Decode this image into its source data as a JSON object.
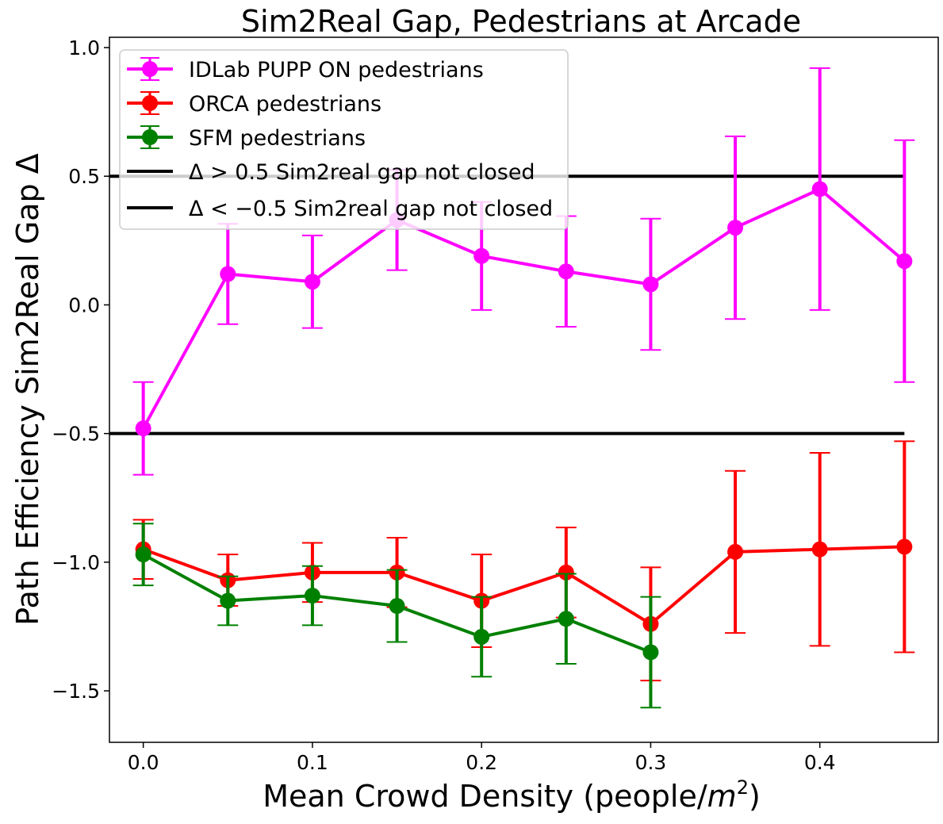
{
  "chart_data": {
    "type": "line",
    "title": "Sim2Real Gap, Pedestrians at Arcade",
    "xlabel": "Mean Crowd Density (people/",
    "xlabel_unit": "m",
    "xlabel_exp": "2",
    "xlabel_close": ")",
    "ylabel": "Path Efficiency Sim2Real Gap Δ",
    "xlim": [
      -0.02,
      0.47
    ],
    "ylim": [
      -1.7,
      1.04
    ],
    "xticks": [
      {
        "value": 0.0,
        "label": "0.0"
      },
      {
        "value": 0.1,
        "label": "0.1"
      },
      {
        "value": 0.2,
        "label": "0.2"
      },
      {
        "value": 0.3,
        "label": "0.3"
      },
      {
        "value": 0.4,
        "label": "0.4"
      }
    ],
    "yticks": [
      {
        "value": 1.0,
        "label": "1.0"
      },
      {
        "value": 0.5,
        "label": "0.5"
      },
      {
        "value": 0.0,
        "label": "0.0"
      },
      {
        "value": -0.5,
        "label": "−0.5"
      },
      {
        "value": -1.0,
        "label": "−1.0"
      },
      {
        "value": -1.5,
        "label": "−1.5"
      }
    ],
    "grid": false,
    "legend_position": "top-left",
    "series": [
      {
        "name": "IDLab PUPP ON pedestrians",
        "color": "#ff00ff",
        "x": [
          0.0,
          0.05,
          0.1,
          0.15,
          0.2,
          0.25,
          0.3,
          0.35,
          0.4,
          0.45
        ],
        "y": [
          -0.48,
          0.12,
          0.09,
          0.33,
          0.19,
          0.13,
          0.08,
          0.3,
          0.45,
          0.17
        ],
        "err": [
          0.18,
          0.195,
          0.18,
          0.195,
          0.21,
          0.215,
          0.255,
          0.355,
          0.47,
          0.47
        ]
      },
      {
        "name": "ORCA pedestrians",
        "color": "#ff0000",
        "x": [
          0.0,
          0.05,
          0.1,
          0.15,
          0.2,
          0.25,
          0.3,
          0.35,
          0.4,
          0.45
        ],
        "y": [
          -0.95,
          -1.07,
          -1.04,
          -1.04,
          -1.15,
          -1.04,
          -1.24,
          -0.96,
          -0.95,
          -0.94
        ],
        "err": [
          0.115,
          0.1,
          0.115,
          0.135,
          0.18,
          0.175,
          0.22,
          0.315,
          0.375,
          0.41
        ]
      },
      {
        "name": "SFM pedestrians",
        "color": "#008000",
        "x": [
          0.0,
          0.05,
          0.1,
          0.15,
          0.2,
          0.25,
          0.3
        ],
        "y": [
          -0.97,
          -1.15,
          -1.13,
          -1.17,
          -1.29,
          -1.22,
          -1.35
        ],
        "err": [
          0.12,
          0.095,
          0.115,
          0.14,
          0.155,
          0.175,
          0.215
        ]
      }
    ],
    "reference_lines": [
      {
        "y": 0.5,
        "color": "#000000",
        "x_start": -0.02,
        "x_end": 0.45,
        "label_prefix": "Δ",
        "label_op": " > ",
        "label_value": "0.5",
        "label_rest": " Sim2real gap not closed"
      },
      {
        "y": -0.5,
        "color": "#000000",
        "x_start": -0.02,
        "x_end": 0.45,
        "label_prefix": "Δ",
        "label_op": " < ",
        "label_value": "−0.5",
        "label_rest": " Sim2real gap not closed"
      }
    ]
  }
}
